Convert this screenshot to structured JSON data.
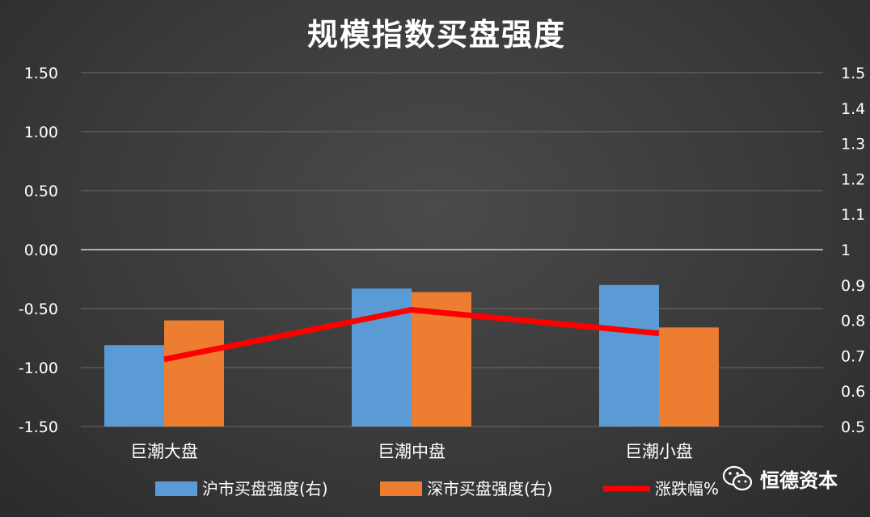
{
  "chart_data": {
    "type": "bar",
    "title": "规模指数买盘强度",
    "categories": [
      "巨潮大盘",
      "巨潮中盘",
      "巨潮小盘"
    ],
    "y_left": {
      "ylim": [
        -1.5,
        1.5
      ],
      "ticks": [
        "1.50",
        "1.00",
        "0.50",
        "0.00",
        "-0.50",
        "-1.00",
        "-1.50"
      ]
    },
    "y_right": {
      "ylim": [
        0.5,
        1.5
      ],
      "ticks": [
        "1.5",
        "1.4",
        "1.3",
        "1.2",
        "1.1",
        "1",
        "0.9",
        "0.8",
        "0.7",
        "0.6",
        "0.5"
      ]
    },
    "series": [
      {
        "name": "沪市买盘强度(右)",
        "type": "bar",
        "axis": "right",
        "color": "#5b9bd5",
        "values": [
          0.73,
          0.89,
          0.9
        ]
      },
      {
        "name": "深市买盘强度(右)",
        "type": "bar",
        "axis": "right",
        "color": "#ed7d31",
        "values": [
          0.8,
          0.88,
          0.78
        ]
      },
      {
        "name": "涨跌幅%",
        "type": "line",
        "axis": "left",
        "color": "#ff0000",
        "values": [
          -0.93,
          -0.51,
          -0.71
        ]
      }
    ],
    "grid": true,
    "legend_position": "bottom"
  },
  "watermark": {
    "text": "恒德资本",
    "icon": "wechat-icon"
  }
}
